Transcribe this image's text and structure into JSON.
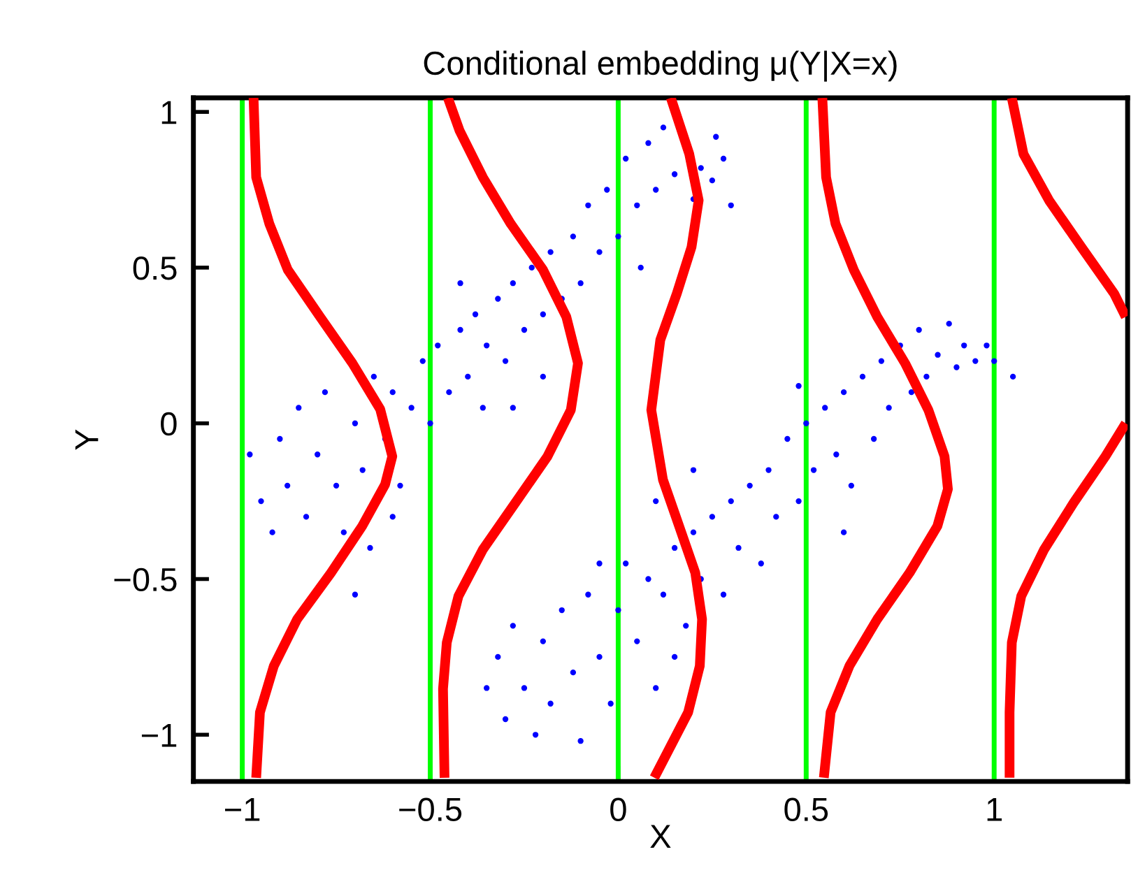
{
  "chart_data": {
    "type": "scatter",
    "title": "Conditional embedding μ(Y|X=x)",
    "xlabel": "X",
    "ylabel": "Y",
    "xlim": [
      -1.13,
      1.355
    ],
    "ylim": [
      -1.15,
      1.045
    ],
    "xticks": [
      {
        "value": -1,
        "label": "−1"
      },
      {
        "value": -0.5,
        "label": "−0.5"
      },
      0,
      0.5,
      1
    ],
    "yticks": [
      {
        "value": -1,
        "label": "−1"
      },
      {
        "value": -0.5,
        "label": "−0.5"
      },
      0,
      0.5,
      1
    ],
    "grid": false,
    "legend": false,
    "ref_lines": [
      {
        "axis": "x",
        "value": -1,
        "color": "#00ff00"
      },
      {
        "axis": "x",
        "value": -0.5,
        "color": "#00ff00"
      },
      {
        "axis": "x",
        "value": 0,
        "color": "#00ff00"
      },
      {
        "axis": "x",
        "value": 0.5,
        "color": "#00ff00"
      },
      {
        "axis": "x",
        "value": 1,
        "color": "#00ff00"
      }
    ],
    "series": [
      {
        "marker": "circle",
        "color": "#0000ff",
        "x": [
          -0.98,
          -0.95,
          -0.9,
          -0.88,
          -0.85,
          -0.83,
          -0.8,
          -0.78,
          -0.75,
          -0.73,
          -0.7,
          -0.68,
          -0.66,
          -0.65,
          -0.62,
          -0.6,
          -0.58,
          -0.55,
          -0.52,
          -0.5,
          -0.48,
          -0.45,
          -0.42,
          -0.4,
          -0.38,
          -0.36,
          -0.35,
          -0.32,
          -0.3,
          -0.28,
          -0.25,
          -0.23,
          -0.2,
          -0.18,
          -0.15,
          -0.12,
          -0.1,
          -0.08,
          -0.05,
          -0.03,
          0.0,
          0.02,
          0.05,
          0.08,
          0.1,
          0.12,
          0.15,
          0.26,
          0.2,
          0.22,
          0.25,
          0.28,
          0.3,
          -0.92,
          -0.7,
          -0.6,
          -0.42,
          -0.28,
          -0.2,
          0.06,
          -0.35,
          -0.32,
          -0.3,
          -0.28,
          -0.25,
          -0.22,
          -0.2,
          -0.18,
          -0.15,
          -0.12,
          -0.1,
          -0.08,
          -0.05,
          -0.02,
          0.0,
          0.02,
          0.05,
          0.08,
          0.1,
          0.12,
          0.15,
          0.18,
          0.2,
          0.22,
          0.25,
          0.28,
          0.3,
          0.32,
          0.35,
          0.38,
          0.4,
          0.42,
          0.45,
          0.48,
          0.5,
          0.52,
          0.55,
          0.58,
          0.6,
          0.62,
          0.65,
          0.68,
          0.7,
          0.72,
          0.75,
          0.78,
          0.8,
          0.82,
          0.85,
          0.88,
          0.9,
          0.92,
          0.95,
          0.98,
          1.0,
          1.05,
          0.1,
          0.2,
          0.6,
          0.48,
          -0.05,
          0.15
        ],
        "values": [
          -0.1,
          -0.25,
          -0.05,
          -0.2,
          0.05,
          -0.3,
          -0.1,
          0.1,
          -0.2,
          -0.35,
          0.0,
          -0.15,
          -0.4,
          0.15,
          -0.05,
          0.1,
          -0.2,
          0.05,
          0.2,
          0.0,
          0.25,
          0.1,
          0.3,
          0.15,
          0.35,
          0.05,
          0.25,
          0.4,
          0.2,
          0.45,
          0.3,
          0.5,
          0.35,
          0.55,
          0.4,
          0.6,
          0.45,
          0.7,
          0.55,
          0.75,
          0.6,
          0.85,
          0.7,
          0.9,
          0.75,
          0.95,
          0.8,
          0.92,
          0.72,
          0.82,
          0.78,
          0.85,
          0.7,
          -0.35,
          -0.55,
          -0.3,
          0.45,
          0.05,
          0.15,
          0.5,
          -0.85,
          -0.75,
          -0.95,
          -0.65,
          -0.85,
          -1.0,
          -0.7,
          -0.9,
          -0.6,
          -0.8,
          -1.02,
          -0.55,
          -0.75,
          -0.9,
          -0.6,
          -0.45,
          -0.7,
          -0.5,
          -0.85,
          -0.55,
          -0.4,
          -0.65,
          -0.35,
          -0.5,
          -0.3,
          -0.55,
          -0.25,
          -0.4,
          -0.2,
          -0.45,
          -0.15,
          -0.3,
          -0.05,
          -0.25,
          0.0,
          -0.15,
          0.05,
          -0.1,
          0.1,
          -0.2,
          0.15,
          -0.05,
          0.2,
          0.05,
          0.25,
          0.1,
          0.3,
          0.15,
          0.22,
          0.32,
          0.18,
          0.25,
          0.2,
          0.25,
          0.2,
          0.15,
          -0.25,
          -0.15,
          -0.35,
          0.12,
          -0.45,
          -0.75
        ]
      },
      {
        "type": "line",
        "color": "#ff0000",
        "x": [
          -0.97,
          -0.963,
          -0.928,
          -0.879,
          -0.793,
          -0.707,
          -0.633,
          -0.601,
          -0.62,
          -0.681,
          -0.764,
          -0.854,
          -0.916,
          -0.953,
          -0.963
        ],
        "values": [
          1.045,
          0.79,
          0.641,
          0.493,
          0.342,
          0.193,
          0.045,
          -0.106,
          -0.196,
          -0.33,
          -0.48,
          -0.629,
          -0.779,
          -0.928,
          -1.138
        ]
      },
      {
        "type": "line",
        "color": "#ff0000",
        "x": [
          -0.453,
          -0.422,
          -0.36,
          -0.286,
          -0.2,
          -0.138,
          -0.107,
          -0.126,
          -0.188,
          -0.274,
          -0.36,
          -0.425,
          -0.456,
          -0.466,
          -0.462
        ],
        "values": [
          1.045,
          0.94,
          0.79,
          0.641,
          0.493,
          0.342,
          0.193,
          0.043,
          -0.106,
          -0.256,
          -0.405,
          -0.555,
          -0.704,
          -0.853,
          -1.138
        ]
      },
      {
        "type": "line",
        "color": "#ff0000",
        "x": [
          0.14,
          0.189,
          0.214,
          0.195,
          0.156,
          0.112,
          0.088,
          0.119,
          0.162,
          0.205,
          0.223,
          0.217,
          0.186,
          0.096
        ],
        "values": [
          1.045,
          0.865,
          0.716,
          0.566,
          0.417,
          0.268,
          0.043,
          -0.181,
          -0.33,
          -0.48,
          -0.629,
          -0.779,
          -0.928,
          -1.138
        ]
      },
      {
        "type": "line",
        "color": "#ff0000",
        "x": [
          0.543,
          0.553,
          0.578,
          0.627,
          0.689,
          0.763,
          0.825,
          0.868,
          0.877,
          0.849,
          0.775,
          0.689,
          0.615,
          0.565,
          0.547
        ],
        "values": [
          1.045,
          0.79,
          0.641,
          0.492,
          0.342,
          0.193,
          0.043,
          -0.106,
          -0.211,
          -0.33,
          -0.48,
          -0.629,
          -0.779,
          -0.928,
          -1.138
        ]
      },
      {
        "type": "line",
        "color": "#ff0000",
        "x": [
          1.047,
          1.078,
          1.146,
          1.232,
          1.319,
          1.35,
          null,
          1.35,
          1.296,
          1.211,
          1.133,
          1.072,
          1.047,
          1.041,
          1.041
        ],
        "values": [
          1.045,
          0.865,
          0.716,
          0.566,
          0.417,
          0.342,
          null,
          0.0,
          -0.106,
          -0.256,
          -0.405,
          -0.555,
          -0.704,
          -0.928,
          -1.138
        ]
      }
    ]
  }
}
